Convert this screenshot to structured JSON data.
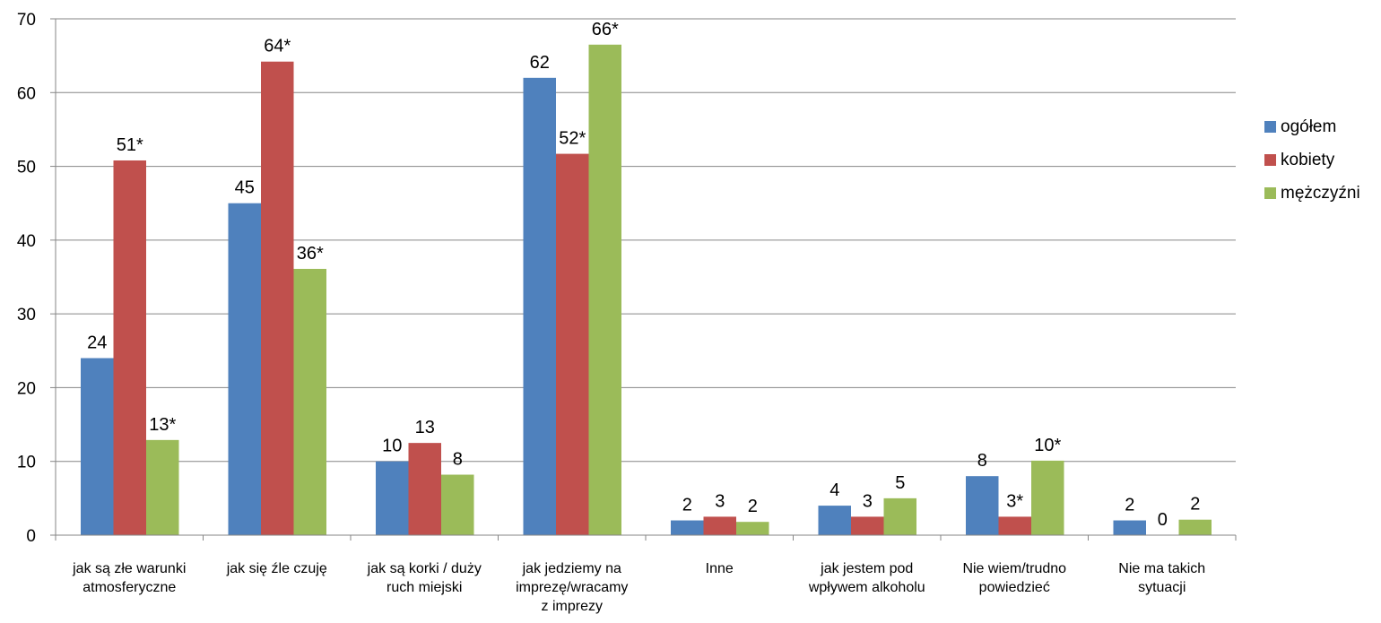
{
  "chart_data": {
    "type": "bar",
    "categories": [
      [
        "jak są złe warunki",
        "atmosferyczne"
      ],
      [
        "jak się źle czuję"
      ],
      [
        "jak są korki / duży",
        "ruch miejski"
      ],
      [
        "jak jedziemy na",
        "imprezę/wracamy",
        "z imprezy"
      ],
      [
        "Inne"
      ],
      [
        "jak jestem pod",
        "wpływem alkoholu"
      ],
      [
        "Nie wiem/trudno",
        "powiedzieć"
      ],
      [
        "Nie ma takich",
        "sytuacji"
      ]
    ],
    "series": [
      {
        "name": "ogółem",
        "color": "#4F81BD",
        "values": [
          24,
          45,
          10,
          62,
          2,
          4,
          8,
          2
        ],
        "labels": [
          "24",
          "45",
          "10",
          "62",
          "2",
          "4",
          "8",
          "2"
        ]
      },
      {
        "name": "kobiety",
        "color": "#C0504D",
        "values": [
          50.8,
          64.2,
          12.5,
          51.7,
          2.5,
          2.5,
          2.5,
          0
        ],
        "labels": [
          "51*",
          "64*",
          "13",
          "52*",
          "3",
          "3",
          "3*",
          "0"
        ]
      },
      {
        "name": "mężczyźni",
        "color": "#9BBB59",
        "values": [
          12.9,
          36.1,
          8.2,
          66.5,
          1.8,
          5,
          10.1,
          2.1
        ],
        "labels": [
          "13*",
          "36*",
          "8",
          "66*",
          "2",
          "5",
          "10*",
          "2"
        ]
      }
    ],
    "ylim": [
      0,
      70
    ],
    "yticks": [
      0,
      10,
      20,
      30,
      40,
      50,
      60,
      70
    ],
    "grid": true,
    "legend_position": "right"
  }
}
